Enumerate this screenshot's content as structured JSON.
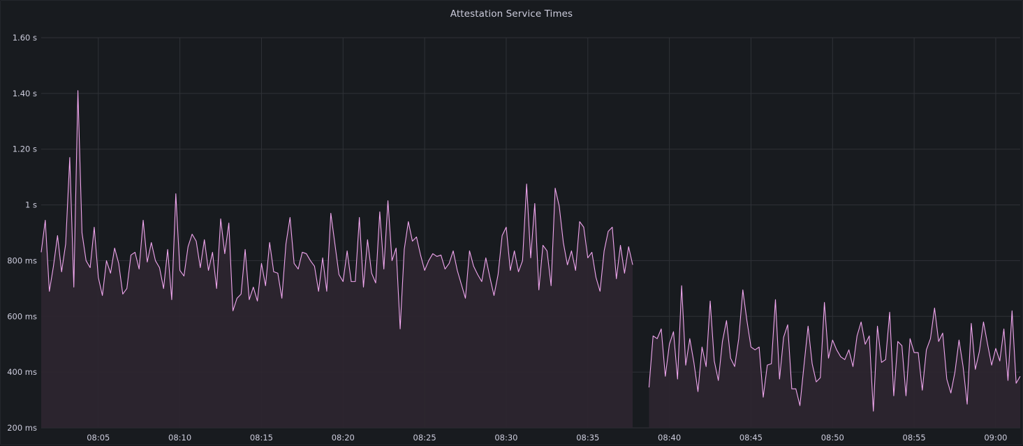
{
  "panel": {
    "title": "Attestation Service Times"
  },
  "colors": {
    "background": "#181b1f",
    "grid": "#2f3237",
    "series_line": "#f1a7ef",
    "series_fill": "#2e2630",
    "text": "#ccccdc"
  },
  "chart_data": {
    "type": "area",
    "title": "Attestation Service Times",
    "xlabel": "",
    "ylabel": "",
    "x_range": [
      "08:01:30",
      "09:01:30"
    ],
    "ylim": [
      0.2,
      1.6
    ],
    "y_ticks": [
      {
        "value": 0.2,
        "label": "200 ms"
      },
      {
        "value": 0.4,
        "label": "400 ms"
      },
      {
        "value": 0.6,
        "label": "600 ms"
      },
      {
        "value": 0.8,
        "label": "800 ms"
      },
      {
        "value": 1.0,
        "label": "1 s"
      },
      {
        "value": 1.2,
        "label": "1.20 s"
      },
      {
        "value": 1.4,
        "label": "1.40 s"
      },
      {
        "value": 1.6,
        "label": "1.60 s"
      }
    ],
    "x_ticks": [
      "08:05",
      "08:10",
      "08:15",
      "08:20",
      "08:25",
      "08:30",
      "08:35",
      "08:40",
      "08:45",
      "08:50",
      "08:55",
      "09:00"
    ],
    "grid": true,
    "legend": "none",
    "series": [
      {
        "segments": [
          {
            "start": "08:01:30",
            "step_seconds": 15,
            "values": [
              0.83,
              0.945,
              0.69,
              0.78,
              0.89,
              0.76,
              0.86,
              1.17,
              0.705,
              1.41,
              0.9,
              0.8,
              0.775,
              0.92,
              0.74,
              0.675,
              0.8,
              0.755,
              0.845,
              0.79,
              0.68,
              0.7,
              0.82,
              0.83,
              0.77,
              0.945,
              0.795,
              0.865,
              0.8,
              0.775,
              0.7,
              0.84,
              0.66,
              1.04,
              0.765,
              0.745,
              0.85,
              0.895,
              0.87,
              0.775,
              0.875,
              0.765,
              0.83,
              0.7,
              0.95,
              0.825,
              0.935,
              0.62,
              0.665,
              0.68,
              0.84,
              0.66,
              0.705,
              0.655,
              0.79,
              0.71,
              0.865,
              0.76,
              0.755,
              0.665,
              0.86,
              0.955,
              0.79,
              0.77,
              0.83,
              0.825,
              0.8,
              0.78,
              0.69,
              0.81,
              0.69,
              0.97,
              0.86,
              0.75,
              0.725,
              0.835,
              0.725,
              0.725,
              0.955,
              0.705,
              0.875,
              0.755,
              0.72,
              0.975,
              0.77,
              1.015,
              0.8,
              0.845,
              0.555,
              0.84,
              0.94,
              0.87,
              0.885,
              0.82,
              0.765,
              0.8,
              0.825,
              0.815,
              0.82,
              0.77,
              0.79,
              0.835,
              0.765,
              0.715,
              0.665,
              0.835,
              0.78,
              0.75,
              0.725,
              0.81,
              0.74,
              0.675,
              0.75,
              0.89,
              0.92,
              0.765,
              0.835,
              0.76,
              0.8,
              1.075,
              0.81,
              1.005,
              0.695,
              0.855,
              0.835,
              0.71,
              1.06,
              0.995,
              0.865,
              0.785,
              0.835,
              0.765,
              0.94,
              0.92,
              0.81,
              0.83,
              0.74,
              0.69,
              0.835,
              0.905,
              0.92,
              0.735,
              0.855,
              0.755,
              0.85,
              0.785
            ]
          },
          {
            "start": "08:38:45",
            "step_seconds": 15,
            "values": [
              0.345,
              0.53,
              0.52,
              0.555,
              0.385,
              0.5,
              0.545,
              0.375,
              0.71,
              0.425,
              0.52,
              0.435,
              0.33,
              0.49,
              0.42,
              0.655,
              0.44,
              0.37,
              0.51,
              0.585,
              0.45,
              0.42,
              0.52,
              0.695,
              0.585,
              0.49,
              0.48,
              0.49,
              0.31,
              0.425,
              0.43,
              0.66,
              0.375,
              0.525,
              0.57,
              0.34,
              0.34,
              0.28,
              0.425,
              0.565,
              0.43,
              0.365,
              0.38,
              0.65,
              0.45,
              0.515,
              0.48,
              0.455,
              0.445,
              0.48,
              0.42,
              0.53,
              0.58,
              0.5,
              0.53,
              0.26,
              0.565,
              0.435,
              0.445,
              0.615,
              0.315,
              0.51,
              0.495,
              0.315,
              0.52,
              0.47,
              0.47,
              0.335,
              0.48,
              0.52,
              0.63,
              0.51,
              0.54,
              0.375,
              0.325,
              0.4,
              0.515,
              0.42,
              0.285,
              0.575,
              0.41,
              0.475,
              0.58,
              0.5,
              0.425,
              0.485,
              0.44,
              0.555,
              0.37,
              0.62,
              0.36,
              0.385
            ]
          }
        ]
      }
    ]
  }
}
